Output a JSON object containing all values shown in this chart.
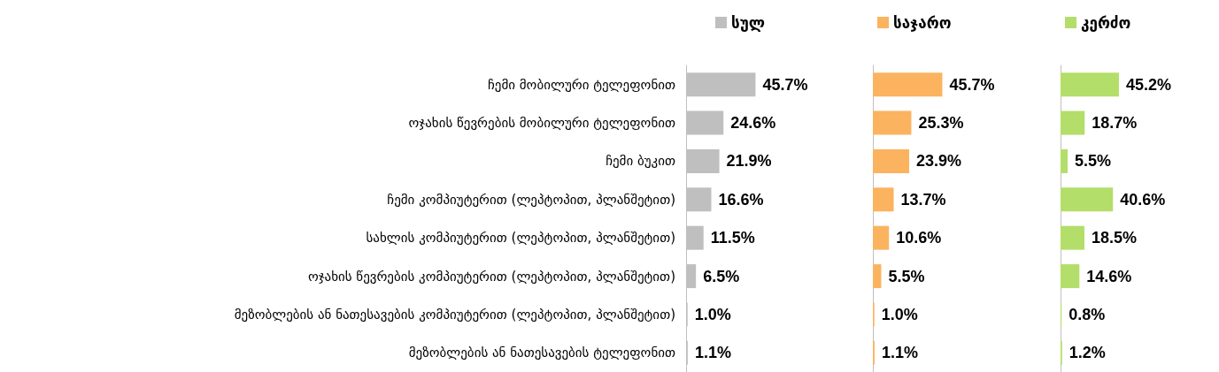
{
  "chart_data": [
    {
      "type": "bar",
      "orientation": "horizontal",
      "legend": "top right",
      "tick_labels": "y",
      "categories": [
        "ჩემი მობილური ტელეფონით",
        "ოჯახის წევრების მობილური ტელეფონით",
        "ჩემი ბუკით",
        "ჩემი კომპიუტერით (ლეპტოპით, პლანშეტით)",
        "სახლის კომპიუტერით (ლეპტოპით, პლანშეტით)",
        "ოჯახის წევრების კომპიუტერით (ლეპტოპით, პლანშეტით)",
        "მეზობლების ან ნათესავების კომპიუტერით (ლეპტოპით, პლანშეტით)",
        "მეზობლების ან ნათესავების ტელეფონით"
      ],
      "series": [
        {
          "name": "სულ",
          "color": "#bfbfbf",
          "values": [
            45.7,
            24.6,
            21.9,
            16.6,
            11.5,
            6.5,
            1.0,
            1.1
          ],
          "value_labels": [
            "45.7%",
            "24.6%",
            "21.9%",
            "16.6%",
            "11.5%",
            "6.5%",
            "1.0%",
            "1.1%"
          ]
        }
      ]
    },
    {
      "type": "bar",
      "orientation": "horizontal",
      "legend": "top right",
      "tick_labels": false,
      "categories": [
        null,
        null,
        null,
        null,
        null,
        null,
        null,
        null
      ],
      "series": [
        {
          "name": "საჯარო",
          "color": "#fbb35f",
          "values": [
            45.7,
            25.3,
            23.9,
            13.7,
            10.6,
            5.5,
            1.0,
            1.1
          ],
          "value_labels": [
            "45.7%",
            "25.3%",
            "23.9%",
            "13.7%",
            "10.6%",
            "5.5%",
            "1.0%",
            "1.1%"
          ]
        }
      ]
    },
    {
      "type": "bar",
      "orientation": "horizontal",
      "legend": "top right",
      "tick_labels": false,
      "categories": [
        null,
        null,
        null,
        null,
        null,
        null,
        null,
        null
      ],
      "series": [
        {
          "name": "კერძო",
          "color": "#b3de69",
          "values": [
            45.2,
            18.7,
            5.5,
            40.6,
            18.5,
            14.6,
            0.8,
            1.2
          ],
          "value_labels": [
            "45.2%",
            "18.7%",
            "5.5%",
            "40.6%",
            "18.5%",
            "14.6%",
            "0.8%",
            "1.2%"
          ]
        }
      ]
    }
  ]
}
